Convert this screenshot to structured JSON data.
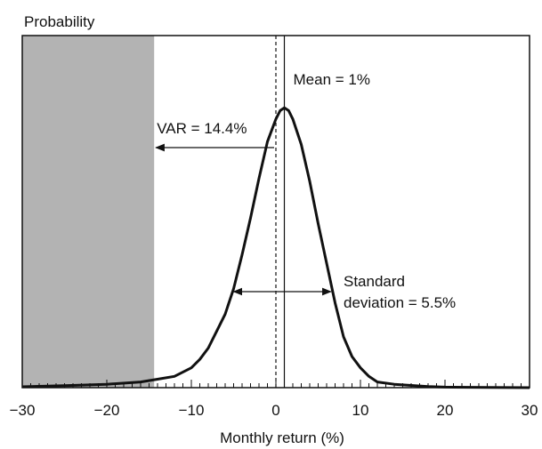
{
  "chart_data": {
    "type": "area",
    "title": "",
    "ylabel": "Probability",
    "xlabel": "Monthly return (%)",
    "xlim": [
      -30,
      30
    ],
    "ylim": [
      0,
      1
    ],
    "x_ticks": [
      -30,
      -20,
      -10,
      0,
      10,
      20,
      30
    ],
    "x_tick_labels": [
      "−30",
      "−20",
      "−10",
      "0",
      "10",
      "20",
      "30"
    ],
    "grid": false,
    "legend": "none",
    "shaded_region": {
      "from": -30,
      "to": -14.4,
      "color": "#b3b3b3"
    },
    "series": [
      {
        "x": [
          -30,
          -25,
          -20,
          -16,
          -14,
          -12,
          -10,
          -9,
          -8,
          -7,
          -6,
          -5,
          -4,
          -3,
          -2,
          -1,
          0,
          0.5,
          1,
          1.5,
          2,
          3,
          4,
          5,
          6,
          7,
          8,
          9,
          10,
          11,
          12,
          14,
          16,
          18,
          20,
          25,
          30
        ],
        "values": [
          0.003,
          0.007,
          0.012,
          0.02,
          0.03,
          0.04,
          0.07,
          0.1,
          0.14,
          0.2,
          0.26,
          0.35,
          0.47,
          0.6,
          0.74,
          0.87,
          0.95,
          0.98,
          0.99,
          0.98,
          0.95,
          0.86,
          0.73,
          0.58,
          0.44,
          0.3,
          0.18,
          0.11,
          0.07,
          0.04,
          0.02,
          0.012,
          0.008,
          0.004,
          0.002,
          0.001,
          0.0
        ]
      }
    ],
    "annotations": {
      "mean": {
        "x": 1,
        "label": "Mean = 1%"
      },
      "var": {
        "x": -14.4,
        "from_x": 0,
        "label": "VAR = 14.4%"
      },
      "std": {
        "from_x": -5,
        "to_x": 6.5,
        "label_line1": "Standard",
        "label_line2": "deviation = 5.5%"
      }
    }
  }
}
